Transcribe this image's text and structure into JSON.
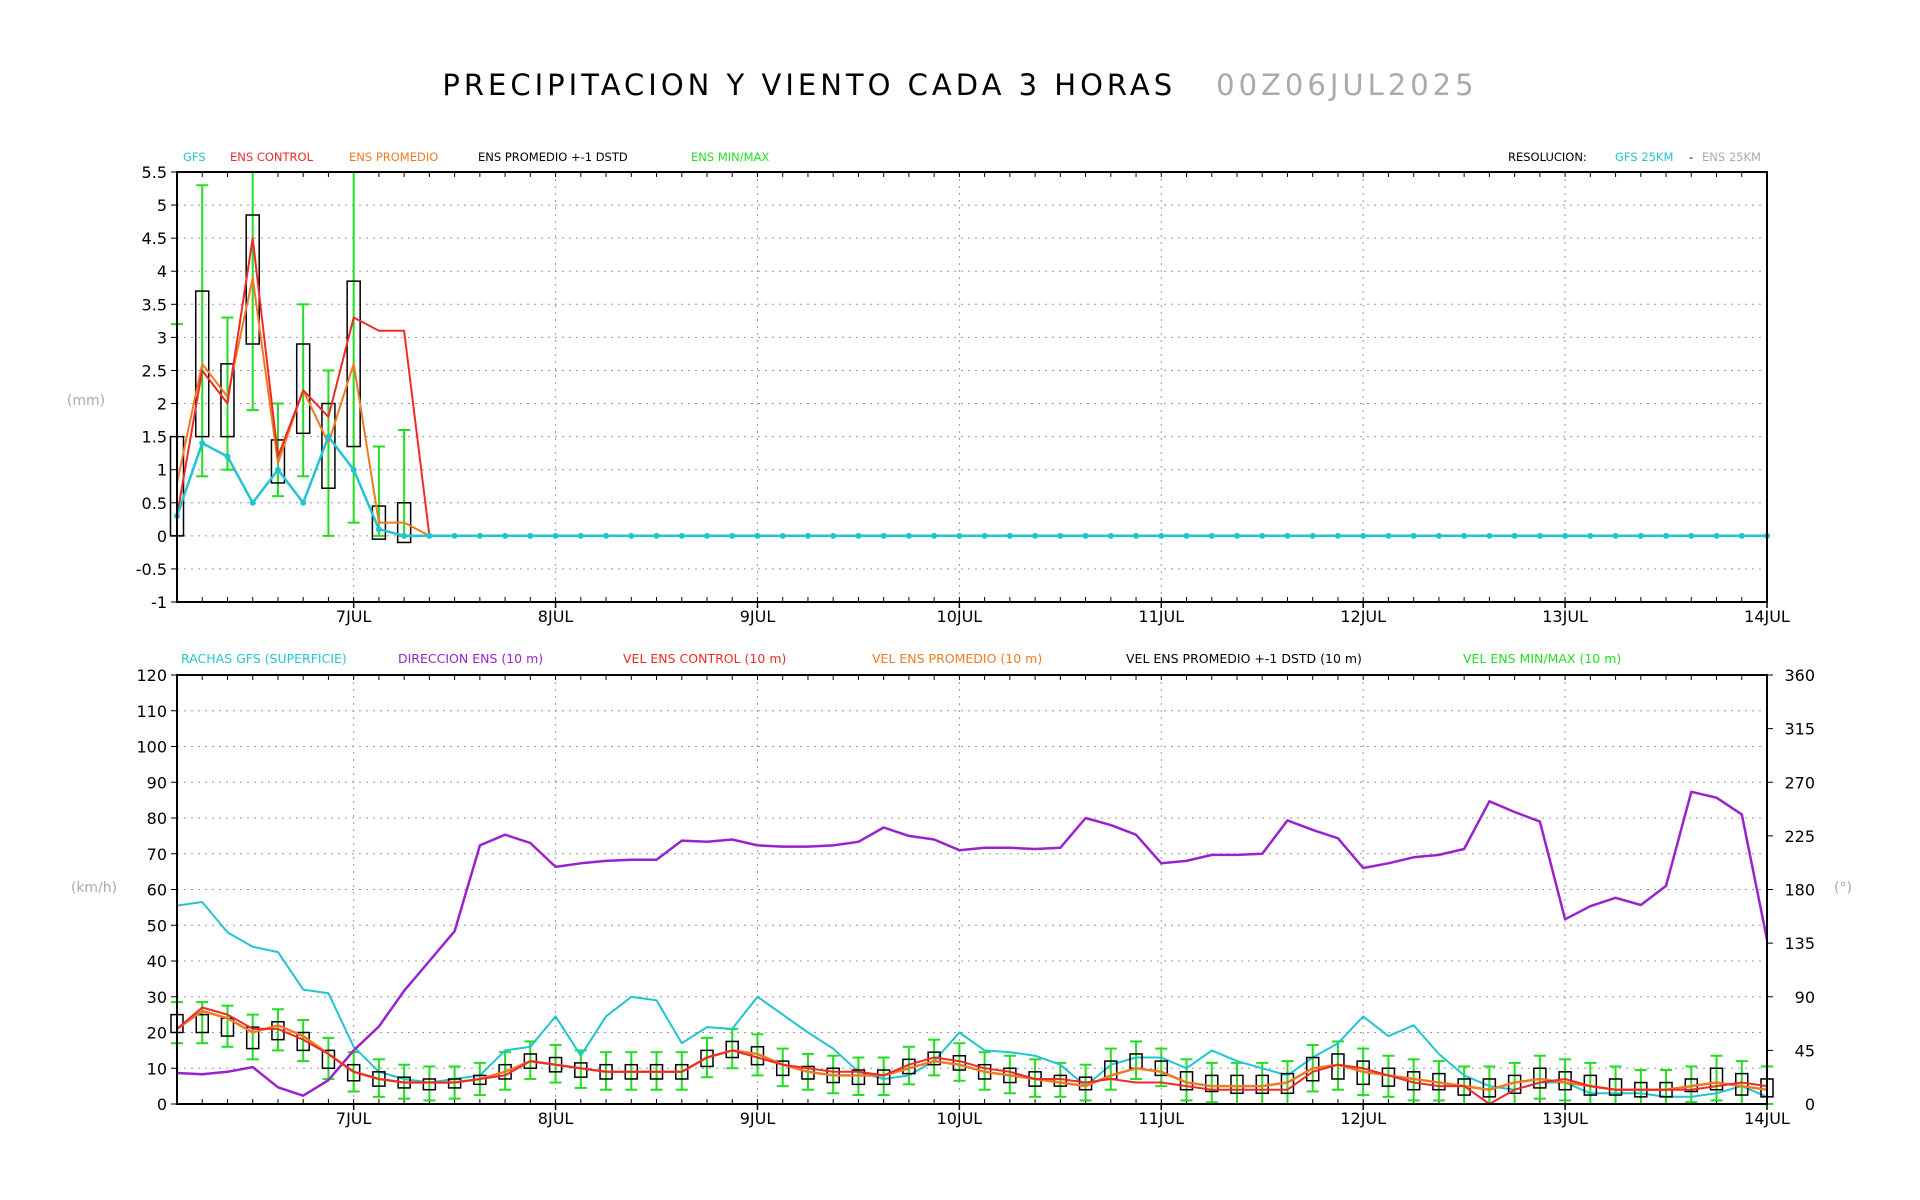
{
  "header": {
    "title": "PRECIPITACION Y VIENTO CADA 3 HORAS",
    "date": "00Z06JUL2025"
  },
  "colors": {
    "gfs": "#22c4d2",
    "ens_control": "#ee2a2a",
    "ens_promedio": "#ee7a22",
    "stdbox": "#000000",
    "minmax": "#22dd22",
    "direccion": "#9a22cc",
    "grey": "#aaaaaa"
  },
  "chart_data": [
    {
      "type": "line",
      "title": "",
      "ylabel": "(mm)",
      "ylim": [
        -1,
        5.5
      ],
      "yticks": [
        "-1",
        "-0.5",
        "0",
        "0.5",
        "1",
        "1.5",
        "2",
        "2.5",
        "3",
        "3.5",
        "4",
        "4.5",
        "5",
        "5.5"
      ],
      "xlim_steps": [
        0,
        63
      ],
      "x_step_hours": 3,
      "x_start": "00Z06JUL2025",
      "xtick_labels": [
        "7JUL",
        "8JUL",
        "9JUL",
        "10JUL",
        "11JUL",
        "12JUL",
        "13JUL",
        "14JUL"
      ],
      "xtick_steps": [
        7,
        15,
        23,
        31,
        39,
        47,
        55,
        63
      ],
      "legend": [
        {
          "label": "GFS",
          "color": "gfs"
        },
        {
          "label": "ENS CONTROL",
          "color": "ens_control"
        },
        {
          "label": "ENS PROMEDIO",
          "color": "ens_promedio"
        },
        {
          "label": "ENS PROMEDIO +-1 DSTD",
          "color": "stdbox"
        },
        {
          "label": "ENS MIN/MAX",
          "color": "minmax"
        }
      ],
      "resolution": {
        "label": "RESOLUCION:",
        "gfs": "GFS 25KM",
        "sep": "-",
        "ens": "ENS 25KM"
      },
      "gfs": [
        0.3,
        1.4,
        1.2,
        0.5,
        1.0,
        0.5,
        1.5,
        1.0,
        0.1,
        0.0,
        0,
        0,
        0,
        0,
        0,
        0,
        0,
        0,
        0,
        0,
        0,
        0,
        0,
        0,
        0,
        0,
        0,
        0,
        0,
        0,
        0,
        0,
        0,
        0,
        0,
        0,
        0,
        0,
        0,
        0,
        0,
        0,
        0,
        0,
        0,
        0,
        0,
        0,
        0,
        0,
        0,
        0,
        0,
        0,
        0,
        0,
        0,
        0,
        0,
        0,
        0,
        0,
        0,
        0
      ],
      "ens_control": [
        0.3,
        2.5,
        2.0,
        4.5,
        1.2,
        2.2,
        1.8,
        3.3,
        3.1,
        3.1,
        0,
        0,
        0,
        0,
        0,
        0,
        0,
        0,
        0,
        0,
        0,
        0,
        0,
        0,
        0,
        0,
        0,
        0,
        0,
        0,
        0,
        0,
        0,
        0,
        0,
        0,
        0,
        0,
        0,
        0,
        0,
        0,
        0,
        0,
        0,
        0,
        0,
        0,
        0,
        0,
        0,
        0,
        0,
        0,
        0,
        0,
        0,
        0,
        0,
        0,
        0,
        0,
        0,
        0
      ],
      "ens_promedio": [
        0.8,
        2.6,
        2.1,
        3.9,
        1.1,
        2.2,
        1.4,
        2.6,
        0.2,
        0.2,
        0,
        0,
        0,
        0,
        0,
        0,
        0,
        0,
        0,
        0,
        0,
        0,
        0,
        0,
        0,
        0,
        0,
        0,
        0,
        0,
        0,
        0,
        0,
        0,
        0,
        0,
        0,
        0,
        0,
        0,
        0,
        0,
        0,
        0,
        0,
        0,
        0,
        0,
        0,
        0,
        0,
        0,
        0,
        0,
        0,
        0,
        0,
        0,
        0,
        0,
        0,
        0,
        0,
        0
      ],
      "std_box": [
        [
          0,
          0.0,
          1.5
        ],
        [
          1,
          1.5,
          3.7
        ],
        [
          2,
          1.5,
          2.6
        ],
        [
          3,
          2.9,
          4.85
        ],
        [
          4,
          0.8,
          1.45
        ],
        [
          5,
          1.55,
          2.9
        ],
        [
          6,
          0.72,
          2.0
        ],
        [
          7,
          1.35,
          3.85
        ],
        [
          8,
          -0.05,
          0.45
        ],
        [
          9,
          -0.1,
          0.5
        ]
      ],
      "min_max": [
        [
          0,
          0.0,
          3.2
        ],
        [
          1,
          0.9,
          5.3
        ],
        [
          2,
          1.0,
          3.3
        ],
        [
          3,
          1.9,
          5.5
        ],
        [
          4,
          0.6,
          2.0
        ],
        [
          5,
          0.9,
          3.5
        ],
        [
          6,
          0.0,
          2.5
        ],
        [
          7,
          0.2,
          5.5
        ],
        [
          8,
          0.0,
          1.35
        ],
        [
          9,
          0.0,
          1.6
        ]
      ]
    },
    {
      "type": "line",
      "title": "",
      "ylabel": "(km/h)",
      "y2label": "(°)",
      "ylim": [
        0,
        120
      ],
      "y2lim": [
        0,
        360
      ],
      "yticks": [
        "0",
        "10",
        "20",
        "30",
        "40",
        "50",
        "60",
        "70",
        "80",
        "90",
        "100",
        "110",
        "120"
      ],
      "y2ticks": [
        "0",
        "45",
        "90",
        "135",
        "180",
        "225",
        "270",
        "315",
        "360"
      ],
      "xlim_steps": [
        0,
        63
      ],
      "xtick_labels": [
        "7JUL",
        "8JUL",
        "9JUL",
        "10JUL",
        "11JUL",
        "12JUL",
        "13JUL",
        "14JUL"
      ],
      "xtick_steps": [
        7,
        15,
        23,
        31,
        39,
        47,
        55,
        63
      ],
      "legend": [
        {
          "label": "RACHAS GFS (SUPERFICIE)",
          "color": "gfs"
        },
        {
          "label": "DIRECCION ENS (10 m)",
          "color": "direccion"
        },
        {
          "label": "VEL ENS CONTROL (10 m)",
          "color": "ens_control"
        },
        {
          "label": "VEL ENS PROMEDIO (10 m)",
          "color": "ens_promedio"
        },
        {
          "label": "VEL ENS PROMEDIO +-1 DSTD (10 m)",
          "color": "stdbox"
        },
        {
          "label": "VEL ENS MIN/MAX (10 m)",
          "color": "minmax"
        }
      ],
      "rachas_gfs": [
        55.5,
        56.5,
        48,
        44,
        42.5,
        32,
        31,
        16,
        9,
        7,
        6,
        7,
        8,
        15,
        16,
        24.5,
        13.5,
        24.5,
        30,
        29,
        17,
        21.5,
        21,
        30,
        25,
        20,
        15.5,
        9,
        7,
        8,
        12,
        20,
        15,
        14.5,
        13.5,
        11,
        5,
        11,
        13,
        13,
        10,
        15,
        12,
        10,
        8,
        13,
        17,
        24.5,
        19,
        22,
        14,
        8,
        5,
        4,
        6,
        6,
        3,
        3,
        3,
        2,
        2,
        3,
        5,
        2
      ],
      "direccion": [
        26,
        25,
        27,
        31,
        14,
        7,
        20,
        45,
        65,
        95,
        120,
        145,
        217,
        226,
        219,
        199,
        202,
        204,
        205,
        205,
        221,
        220,
        222,
        217,
        216,
        216,
        217,
        220,
        232,
        225,
        222,
        213,
        215,
        215,
        214,
        215,
        240,
        234,
        226,
        202,
        204,
        209,
        209,
        210,
        238,
        230,
        223,
        198,
        202,
        207,
        209,
        214,
        254,
        245,
        237,
        155,
        166,
        173,
        167,
        183,
        262,
        257,
        243,
        138
      ],
      "vel_control": [
        21,
        27,
        25,
        21,
        21,
        18,
        14,
        9,
        7,
        6,
        6,
        6,
        7,
        8,
        12,
        11,
        10,
        9,
        9,
        9,
        9,
        13,
        15,
        13,
        11,
        10,
        9,
        9,
        8,
        11,
        13,
        12,
        10,
        9,
        7,
        7,
        6,
        7,
        6,
        6,
        5,
        4,
        4,
        4,
        4,
        9,
        11,
        10,
        8,
        6,
        5,
        5,
        0,
        4,
        6,
        7,
        5,
        4,
        4,
        4,
        4,
        5,
        6,
        5
      ],
      "vel_promedio": [
        21,
        26,
        24,
        20,
        22,
        19,
        14,
        9,
        7,
        6,
        6,
        6,
        7,
        9,
        12,
        11,
        10,
        9,
        9,
        9,
        9,
        13,
        15,
        14,
        11,
        9,
        8,
        8,
        8,
        10,
        12,
        11,
        9,
        8,
        7,
        6,
        5,
        8,
        10,
        9,
        6,
        5,
        5,
        5,
        6,
        10,
        11,
        9,
        8,
        7,
        6,
        5,
        4,
        6,
        7,
        6,
        5,
        4,
        4,
        4,
        5,
        6,
        5,
        4
      ],
      "std_box": [
        [
          0,
          20,
          25
        ],
        [
          1,
          20,
          25
        ],
        [
          2,
          19,
          24
        ],
        [
          3,
          15.5,
          21.5
        ],
        [
          4,
          18,
          23
        ],
        [
          5,
          15,
          20
        ],
        [
          6,
          10,
          15
        ],
        [
          7,
          6.5,
          11
        ],
        [
          8,
          5,
          9
        ],
        [
          9,
          4.5,
          7.5
        ],
        [
          10,
          4,
          7
        ],
        [
          11,
          4.5,
          7
        ],
        [
          12,
          5.5,
          8
        ],
        [
          13,
          7,
          11
        ],
        [
          14,
          10,
          14
        ],
        [
          15,
          9,
          13
        ],
        [
          16,
          7.5,
          11.5
        ],
        [
          17,
          7,
          11
        ],
        [
          18,
          7,
          11
        ],
        [
          19,
          7,
          11
        ],
        [
          20,
          7,
          11
        ],
        [
          21,
          10.5,
          15
        ],
        [
          22,
          13,
          17.5
        ],
        [
          23,
          11,
          16
        ],
        [
          24,
          8,
          12
        ],
        [
          25,
          7,
          10.5
        ],
        [
          26,
          6,
          10
        ],
        [
          27,
          5.5,
          9.5
        ],
        [
          28,
          5.5,
          9.5
        ],
        [
          29,
          8.5,
          12.5
        ],
        [
          30,
          11,
          14.5
        ],
        [
          31,
          9.5,
          13.5
        ],
        [
          32,
          7,
          11
        ],
        [
          33,
          6,
          10
        ],
        [
          34,
          5,
          9
        ],
        [
          35,
          5,
          8
        ],
        [
          36,
          4,
          7.5
        ],
        [
          37,
          7,
          12
        ],
        [
          38,
          10,
          14
        ],
        [
          39,
          8,
          12
        ],
        [
          40,
          4,
          9
        ],
        [
          41,
          3.5,
          8
        ],
        [
          42,
          3,
          8
        ],
        [
          43,
          3,
          8
        ],
        [
          44,
          3,
          8.5
        ],
        [
          45,
          6.5,
          13
        ],
        [
          46,
          7,
          14
        ],
        [
          47,
          5.5,
          12
        ],
        [
          48,
          5,
          10
        ],
        [
          49,
          4,
          9
        ],
        [
          50,
          4,
          8.5
        ],
        [
          51,
          2.5,
          7
        ],
        [
          52,
          2,
          7
        ],
        [
          53,
          3,
          8
        ],
        [
          54,
          4.5,
          10
        ],
        [
          55,
          4,
          9
        ],
        [
          56,
          2.5,
          8
        ],
        [
          57,
          2.5,
          7
        ],
        [
          58,
          2,
          6
        ],
        [
          59,
          2,
          6
        ],
        [
          60,
          3.5,
          7
        ],
        [
          61,
          4,
          10
        ],
        [
          62,
          2.5,
          8.5
        ],
        [
          63,
          2,
          7
        ]
      ]
    }
  ]
}
